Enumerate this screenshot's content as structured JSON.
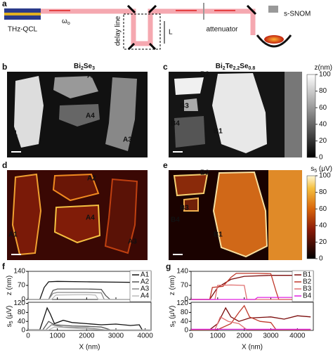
{
  "panel_a": {
    "label": "a",
    "source": "THz-QCL",
    "frequency": [
      "ω",
      "o"
    ],
    "delay": "delay line",
    "length": "L",
    "attenuator": "attenuator",
    "microscope": "s-SNOM"
  },
  "panel_b": {
    "label": "b",
    "title": [
      "Bi",
      "2",
      "Se",
      "3"
    ],
    "labels": [
      "A1",
      "A2",
      "A4",
      "A3"
    ]
  },
  "panel_c": {
    "label": "c",
    "title": [
      "Bi",
      "2",
      "Te",
      "2.2",
      "Se",
      "0.8"
    ],
    "labels": [
      "B2",
      "B3",
      "B4",
      "B1"
    ],
    "colorbar": {
      "title": [
        "z(nm)"
      ],
      "lim": [
        0,
        100
      ],
      "ticks": [
        0,
        20,
        40,
        60,
        80,
        100
      ]
    }
  },
  "panel_d": {
    "label": "d",
    "labels": [
      "A1",
      "A2",
      "A4",
      "A3"
    ]
  },
  "panel_e": {
    "label": "e",
    "labels": [
      "B2",
      "B3",
      "B4",
      "B1"
    ],
    "colorbar": {
      "title": [
        "s",
        "5",
        " (μV)"
      ],
      "lim": [
        0,
        100
      ],
      "ticks": [
        0,
        20,
        40,
        60,
        80,
        100
      ]
    }
  },
  "panel_f": {
    "type": "line",
    "label": "f",
    "xlabel": "X (nm)",
    "xlim": [
      0,
      4200
    ],
    "xticks": [
      0,
      1000,
      2000,
      3000,
      4000
    ],
    "legend": [
      {
        "name": "A1",
        "color": "#111111"
      },
      {
        "name": "A2",
        "color": "#555555"
      },
      {
        "name": "A3",
        "color": "#888888"
      },
      {
        "name": "A4",
        "color": "#bbbbbb"
      }
    ],
    "top": {
      "ylabel": [
        "z (nm)"
      ],
      "ylim": [
        0,
        140
      ],
      "yticks": [
        0,
        70,
        140
      ],
      "series": [
        {
          "color": "#111111",
          "x": [
            0,
            400,
            550,
            700,
            1000,
            2000,
            3000,
            3600,
            3750,
            3900,
            4200
          ],
          "values": [
            0,
            0,
            60,
            88,
            90,
            88,
            86,
            85,
            60,
            5,
            0
          ]
        },
        {
          "color": "#555555",
          "x": [
            0,
            700,
            850,
            1000,
            2000,
            2500,
            2650,
            2800,
            4200
          ],
          "values": [
            0,
            0,
            45,
            52,
            52,
            50,
            20,
            0,
            0
          ]
        },
        {
          "color": "#888888",
          "x": [
            0,
            700,
            850,
            1000,
            2000,
            2500,
            2600,
            4200
          ],
          "values": [
            0,
            0,
            30,
            35,
            35,
            33,
            0,
            0
          ]
        },
        {
          "color": "#bbbbbb",
          "x": [
            0,
            800,
            950,
            2000,
            2300,
            2400,
            4200
          ],
          "values": [
            0,
            0,
            22,
            24,
            22,
            0,
            0
          ]
        }
      ]
    },
    "bottom": {
      "ylabel": [
        "s",
        "5",
        " (μV)"
      ],
      "ylim": [
        0,
        125
      ],
      "yticks": [
        0,
        40,
        80,
        120
      ],
      "series": [
        {
          "color": "#111111",
          "x": [
            0,
            400,
            550,
            650,
            750,
            900,
            1200,
            1500,
            2000,
            2500,
            3000,
            3500,
            3800,
            3900,
            4200
          ],
          "values": [
            3,
            3,
            60,
            100,
            75,
            30,
            45,
            35,
            30,
            25,
            28,
            22,
            25,
            2,
            2
          ]
        },
        {
          "color": "#555555",
          "x": [
            0,
            500,
            700,
            900,
            1500,
            2000,
            2500,
            2800,
            4200
          ],
          "values": [
            2,
            2,
            40,
            25,
            20,
            18,
            15,
            3,
            2
          ]
        },
        {
          "color": "#888888",
          "x": [
            0,
            600,
            800,
            1200,
            2000,
            2600,
            4200
          ],
          "values": [
            2,
            2,
            25,
            15,
            12,
            3,
            2
          ]
        },
        {
          "color": "#bbbbbb",
          "x": [
            0,
            700,
            900,
            1500,
            2400,
            4200
          ],
          "values": [
            2,
            2,
            15,
            10,
            3,
            2
          ]
        }
      ]
    }
  },
  "panel_g": {
    "type": "line",
    "label": "g",
    "xlabel": "X (nm)",
    "xlim": [
      0,
      4600
    ],
    "xticks": [
      0,
      1000,
      2000,
      3000,
      4000
    ],
    "legend": [
      {
        "name": "B1",
        "color": "#7a0a0a"
      },
      {
        "name": "B2",
        "color": "#c0392b"
      },
      {
        "name": "B3",
        "color": "#e07070"
      },
      {
        "name": "B4",
        "color": "#e020e0"
      }
    ],
    "top": {
      "ylabel": [
        "z (nm)"
      ],
      "ylim": [
        0,
        140
      ],
      "yticks": [
        0,
        70,
        140
      ],
      "series": [
        {
          "color": "#7a0a0a",
          "x": [
            0,
            700,
            1000,
            1500,
            2000,
            3000,
            4000,
            4500
          ],
          "values": [
            0,
            0,
            60,
            100,
            115,
            120,
            120,
            118
          ]
        },
        {
          "color": "#c0392b",
          "x": [
            0,
            700,
            800,
            1200,
            1500,
            1700,
            2500,
            3000,
            3200,
            3300,
            4500
          ],
          "values": [
            0,
            0,
            60,
            65,
            110,
            130,
            130,
            128,
            40,
            0,
            0
          ]
        },
        {
          "color": "#e07070",
          "x": [
            0,
            900,
            1000,
            1500,
            2000,
            2100,
            4500
          ],
          "values": [
            0,
            0,
            70,
            72,
            70,
            0,
            0
          ]
        },
        {
          "color": "#e020e0",
          "x": [
            0,
            2400,
            2500,
            4000,
            4200,
            4500
          ],
          "values": [
            0,
            0,
            10,
            10,
            0,
            0
          ]
        }
      ]
    },
    "bottom": {
      "ylabel": [
        "s",
        "5",
        " (μV)"
      ],
      "ylim": [
        0,
        125
      ],
      "yticks": [
        0,
        40,
        80,
        120
      ],
      "series": [
        {
          "color": "#7a0a0a",
          "x": [
            0,
            700,
            1000,
            1300,
            1500,
            1800,
            2200,
            3000,
            3500,
            4000,
            4500
          ],
          "values": [
            3,
            3,
            30,
            100,
            60,
            40,
            55,
            60,
            50,
            65,
            60
          ]
        },
        {
          "color": "#c0392b",
          "x": [
            0,
            1000,
            1500,
            1800,
            2000,
            2200,
            2600,
            3000,
            3200,
            4500
          ],
          "values": [
            3,
            3,
            30,
            80,
            110,
            60,
            40,
            35,
            3,
            3
          ]
        },
        {
          "color": "#e07070",
          "x": [
            0,
            900,
            1100,
            1400,
            1800,
            2100,
            4500
          ],
          "values": [
            3,
            3,
            60,
            40,
            30,
            3,
            3
          ]
        },
        {
          "color": "#e020e0",
          "x": [
            0,
            4500
          ],
          "values": [
            5,
            5
          ]
        }
      ]
    }
  }
}
